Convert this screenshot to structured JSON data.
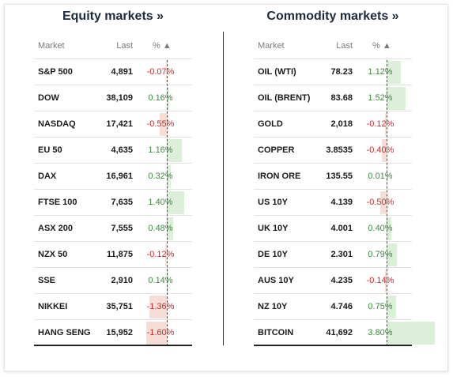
{
  "equity": {
    "title": "Equity markets »",
    "headers": {
      "market": "Market",
      "last": "Last",
      "pct": "% ▲"
    },
    "rows": [
      {
        "name": "S&P 500",
        "last": "4,891",
        "pct": "-0.07%",
        "value": -0.07
      },
      {
        "name": "DOW",
        "last": "38,109",
        "pct": "0.16%",
        "value": 0.16
      },
      {
        "name": "NASDAQ",
        "last": "17,421",
        "pct": "-0.55%",
        "value": -0.55
      },
      {
        "name": "EU 50",
        "last": "4,635",
        "pct": "1.16%",
        "value": 1.16
      },
      {
        "name": "DAX",
        "last": "16,961",
        "pct": "0.32%",
        "value": 0.32
      },
      {
        "name": "FTSE 100",
        "last": "7,635",
        "pct": "1.40%",
        "value": 1.4
      },
      {
        "name": "ASX 200",
        "last": "7,555",
        "pct": "0.48%",
        "value": 0.48
      },
      {
        "name": "NZX 50",
        "last": "11,875",
        "pct": "-0.12%",
        "value": -0.12
      },
      {
        "name": "SSE",
        "last": "2,910",
        "pct": "0.14%",
        "value": 0.14
      },
      {
        "name": "NIKKEI",
        "last": "35,751",
        "pct": "-1.36%",
        "value": -1.36
      },
      {
        "name": "HANG SENG",
        "last": "15,952",
        "pct": "-1.60%",
        "value": -1.6
      }
    ]
  },
  "commodity": {
    "title": "Commodity markets »",
    "headers": {
      "market": "Market",
      "last": "Last",
      "pct": "% ▲"
    },
    "rows": [
      {
        "name": "OIL (WTI)",
        "last": "78.23",
        "pct": "1.12%",
        "value": 1.12
      },
      {
        "name": "OIL (BRENT)",
        "last": "83.68",
        "pct": "1.52%",
        "value": 1.52
      },
      {
        "name": "GOLD",
        "last": "2,018",
        "pct": "-0.12%",
        "value": -0.12
      },
      {
        "name": "COPPER",
        "last": "3.8535",
        "pct": "-0.40%",
        "value": -0.4
      },
      {
        "name": "IRON ORE",
        "last": "135.55",
        "pct": "0.01%",
        "value": 0.01
      },
      {
        "name": "US 10Y",
        "last": "4.139",
        "pct": "-0.50%",
        "value": -0.5
      },
      {
        "name": "UK 10Y",
        "last": "4.001",
        "pct": "0.40%",
        "value": 0.4
      },
      {
        "name": "DE 10Y",
        "last": "2.301",
        "pct": "0.79%",
        "value": 0.79
      },
      {
        "name": "AUS 10Y",
        "last": "4.235",
        "pct": "-0.14%",
        "value": -0.14
      },
      {
        "name": "NZ 10Y",
        "last": "4.746",
        "pct": "0.75%",
        "value": 0.75
      },
      {
        "name": "BITCOIN",
        "last": "41,692",
        "pct": "3.80%",
        "value": 3.8
      }
    ]
  },
  "colors": {
    "positive": "#3a8a3a",
    "negative": "#cc2a2a",
    "positive_bar": "#dcefd9",
    "negative_bar": "#f8ddd6",
    "title": "#1c2a3a"
  }
}
